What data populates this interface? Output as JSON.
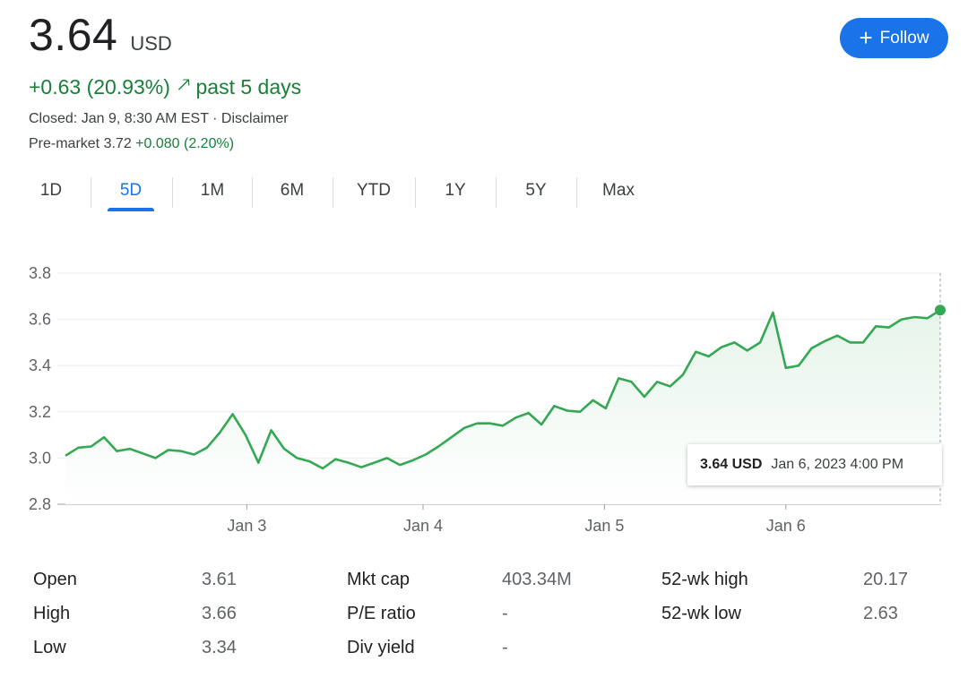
{
  "quote": {
    "price": "3.64",
    "currency": "USD",
    "change": "+0.63 (20.93%)",
    "change_arrow": "🠕",
    "change_period": "past 5 days",
    "closed": "Closed: Jan 9, 8:30 AM EST · Disclaimer",
    "premarket_label": "Pre-market 3.72",
    "premarket_change": "+0.080 (2.20%)"
  },
  "follow": {
    "label": "Follow",
    "icon": "plus-icon",
    "color": "#1a73e8"
  },
  "tabs": [
    "1D",
    "5D",
    "1M",
    "6M",
    "YTD",
    "1Y",
    "5Y",
    "Max"
  ],
  "active_tab": "5D",
  "tooltip": {
    "price": "3.64 USD",
    "date": "Jan 6, 2023 4:00 PM"
  },
  "stats": {
    "col1": [
      {
        "label": "Open",
        "value": "3.61"
      },
      {
        "label": "High",
        "value": "3.66"
      },
      {
        "label": "Low",
        "value": "3.34"
      }
    ],
    "col2": [
      {
        "label": "Mkt cap",
        "value": "403.34M"
      },
      {
        "label": "P/E ratio",
        "value": "-"
      },
      {
        "label": "Div yield",
        "value": "-"
      }
    ],
    "col3": [
      {
        "label": "52-wk high",
        "value": "20.17"
      },
      {
        "label": "52-wk low",
        "value": "2.63"
      }
    ]
  },
  "chart_data": {
    "type": "area",
    "title": "",
    "xlabel": "",
    "ylabel": "",
    "ylim": [
      2.8,
      3.8
    ],
    "yticks": [
      "2.8",
      "3.0",
      "3.2",
      "3.4",
      "3.6",
      "3.8"
    ],
    "xticks": [
      "Jan 3",
      "Jan 4",
      "Jan 5",
      "Jan 6"
    ],
    "grid": true,
    "line_color": "#34a853",
    "fill_color": "#e6f4ea",
    "series": [
      {
        "values": [
          3.01,
          3.045,
          3.05,
          3.09,
          3.03,
          3.04,
          3.02,
          3.0,
          3.035,
          3.03,
          3.015,
          3.045,
          3.11,
          3.19,
          3.1,
          2.98,
          3.12,
          3.04,
          3.0,
          2.985,
          2.955,
          2.995,
          2.98,
          2.96,
          2.98,
          3.0,
          2.97,
          2.99,
          3.015,
          3.05,
          3.09,
          3.13,
          3.15,
          3.15,
          3.14,
          3.175,
          3.195,
          3.145,
          3.225,
          3.205,
          3.2,
          3.25,
          3.215,
          3.345,
          3.33,
          3.265,
          3.33,
          3.31,
          3.36,
          3.46,
          3.44,
          3.48,
          3.5,
          3.465,
          3.5,
          3.63,
          3.39,
          3.4,
          3.475,
          3.505,
          3.53,
          3.5,
          3.5,
          3.57,
          3.565,
          3.6,
          3.61,
          3.605,
          3.64
        ]
      }
    ]
  }
}
